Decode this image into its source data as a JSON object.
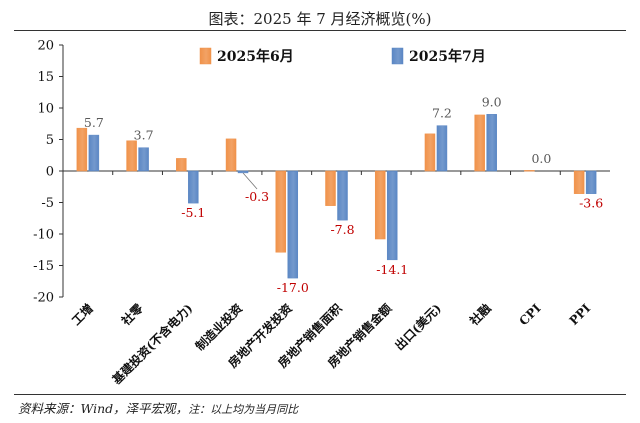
{
  "figure": {
    "title": "图表：2025 年 7 月经济概览(%)",
    "source": "资料来源：Wind，泽平宏观，",
    "note": "注：以上均为当月同比"
  },
  "chart_data": {
    "type": "bar",
    "ylim": [
      -20,
      20
    ],
    "y_ticks": [
      "20",
      "15",
      "10",
      "5",
      "0",
      "-5",
      "-10",
      "-15",
      "-20"
    ],
    "categories": [
      "工增",
      "社零",
      "基建投资(不含电力)",
      "制造业投资",
      "房地产开发投资",
      "房地产销售面积",
      "房地产销售金额",
      "出口(美元)",
      "社融",
      "CPI",
      "PPI"
    ],
    "series": [
      {
        "name": "2025年6月",
        "color": "#F0924A",
        "values": [
          6.8,
          4.8,
          2.0,
          5.1,
          -12.9,
          -5.5,
          -10.8,
          5.9,
          8.9,
          0.1,
          -3.6
        ]
      },
      {
        "name": "2025年7月",
        "color": "#5B87C4",
        "values": [
          5.7,
          3.7,
          -5.1,
          -0.3,
          -17.0,
          -7.8,
          -14.1,
          7.2,
          9.0,
          0.0,
          -3.6
        ]
      }
    ],
    "value_labels": [
      "5.7",
      "3.7",
      "-5.1",
      "-0.3",
      "-17.0",
      "-7.8",
      "-14.1",
      "7.2",
      "9.0",
      "0.0",
      "-3.6"
    ],
    "positive_label_color": "#595959",
    "negative_label_color": "#C00000",
    "legend_position": "top-center"
  }
}
